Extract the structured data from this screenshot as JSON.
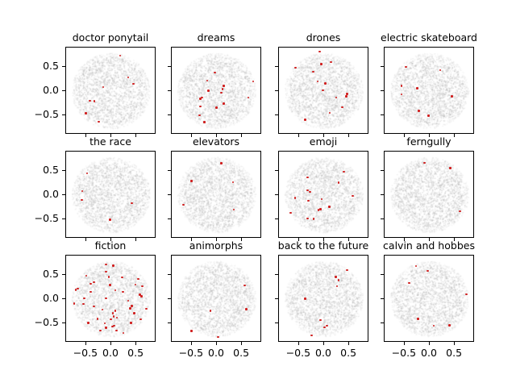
{
  "figure": {
    "background_color": "#ffffff",
    "text_color": "#000000"
  },
  "chart_data": {
    "type": "scatter",
    "grid": {
      "rows": 3,
      "cols": 4
    },
    "xlim": [
      -0.9,
      0.9
    ],
    "ylim": [
      -0.9,
      0.9
    ],
    "x_ticks": [
      -0.5,
      0.0,
      0.5
    ],
    "y_ticks": [
      0.5,
      0.0,
      -0.5
    ],
    "x_tick_labels": [
      "−0.5",
      "0.0",
      "0.5"
    ],
    "y_tick_labels": [
      "0.5",
      "0.0",
      "−0.5"
    ],
    "legend": "none",
    "grid_lines": false,
    "point_color": "#d01f1f",
    "background_cloud": {
      "description": "dense uniform disc of faint gray points behind each subplot",
      "color": "#c8c8c8",
      "radius_data_units": 0.78,
      "n_points": 2200
    },
    "subplots": [
      {
        "title": "doctor ponytail",
        "points": [
          [
            0.18,
            0.73
          ],
          [
            0.34,
            0.28
          ],
          [
            0.44,
            0.15
          ],
          [
            -0.16,
            0.08
          ],
          [
            -0.43,
            -0.2
          ],
          [
            -0.34,
            -0.21
          ],
          [
            -0.51,
            -0.46
          ],
          [
            -0.25,
            -0.63
          ]
        ]
      },
      {
        "title": "dreams",
        "points": [
          [
            -0.04,
            0.38
          ],
          [
            -0.19,
            0.22
          ],
          [
            0.72,
            0.2
          ],
          [
            0.14,
            0.11
          ],
          [
            0.11,
            0.04
          ],
          [
            -0.17,
            0.01
          ],
          [
            0.09,
            -0.03
          ],
          [
            0.63,
            -0.13
          ],
          [
            -0.3,
            -0.13
          ],
          [
            -0.33,
            -0.16
          ],
          [
            0.14,
            -0.26
          ],
          [
            -0.33,
            -0.32
          ],
          [
            -0.01,
            -0.34
          ],
          [
            -0.35,
            -0.5
          ],
          [
            -0.25,
            -0.64
          ]
        ]
      },
      {
        "title": "drones",
        "points": [
          [
            -0.09,
            0.82
          ],
          [
            0.14,
            0.6
          ],
          [
            -0.06,
            0.56
          ],
          [
            -0.57,
            0.48
          ],
          [
            -0.22,
            0.4
          ],
          [
            -0.13,
            0.2
          ],
          [
            0.02,
            0.16
          ],
          [
            -0.02,
            0.02
          ],
          [
            0.46,
            -0.06
          ],
          [
            0.44,
            -0.11
          ],
          [
            0.24,
            -0.13
          ],
          [
            0.36,
            -0.33
          ],
          [
            0.11,
            -0.45
          ],
          [
            -0.38,
            -0.59
          ]
        ]
      },
      {
        "title": "electric skateboard",
        "points": [
          [
            -0.47,
            0.5
          ],
          [
            0.21,
            0.43
          ],
          [
            -0.56,
            0.11
          ],
          [
            -0.25,
            0.06
          ],
          [
            -0.56,
            -0.07
          ],
          [
            0.44,
            -0.11
          ],
          [
            -0.22,
            -0.41
          ],
          [
            -0.02,
            -0.51
          ]
        ]
      },
      {
        "title": "the race",
        "points": [
          [
            -0.48,
            0.45
          ],
          [
            -0.58,
            0.08
          ],
          [
            -0.59,
            -0.1
          ],
          [
            0.41,
            -0.17
          ],
          [
            -0.02,
            -0.51
          ]
        ]
      },
      {
        "title": "elevators",
        "points": [
          [
            0.09,
            0.66
          ],
          [
            -0.51,
            0.29
          ],
          [
            0.32,
            0.27
          ],
          [
            -0.67,
            -0.2
          ],
          [
            0.34,
            -0.3
          ]
        ]
      },
      {
        "title": "emoji",
        "points": [
          [
            0.39,
            0.48
          ],
          [
            -0.33,
            0.37
          ],
          [
            0.29,
            0.26
          ],
          [
            -0.33,
            0.1
          ],
          [
            -0.28,
            0.07
          ],
          [
            0.57,
            -0.02
          ],
          [
            -0.58,
            -0.06
          ],
          [
            -0.05,
            -0.08
          ],
          [
            -0.31,
            -0.12
          ],
          [
            0.1,
            -0.24
          ],
          [
            -0.07,
            -0.29
          ],
          [
            -0.11,
            -0.31
          ],
          [
            -0.67,
            -0.37
          ],
          [
            -0.33,
            -0.48
          ],
          [
            -0.21,
            -0.49
          ]
        ]
      },
      {
        "title": "ferngully",
        "points": [
          [
            -0.1,
            0.67
          ],
          [
            0.41,
            0.56
          ],
          [
            0.6,
            -0.33
          ]
        ]
      },
      {
        "title": "fiction",
        "points": [
          [
            -0.1,
            0.72
          ],
          [
            0.04,
            0.69
          ],
          [
            -0.1,
            0.57
          ],
          [
            -0.5,
            0.48
          ],
          [
            -0.05,
            0.46
          ],
          [
            0.22,
            0.45
          ],
          [
            0.54,
            0.42
          ],
          [
            -0.35,
            0.35
          ],
          [
            -0.41,
            0.32
          ],
          [
            0.48,
            0.3
          ],
          [
            -0.02,
            0.29
          ],
          [
            0.62,
            0.27
          ],
          [
            -0.67,
            0.22
          ],
          [
            -0.71,
            0.19
          ],
          [
            0.08,
            0.18
          ],
          [
            0.23,
            0.15
          ],
          [
            -0.41,
            0.15
          ],
          [
            0.57,
            0.09
          ],
          [
            0.6,
            0.06
          ],
          [
            -0.54,
            0.02
          ],
          [
            -0.1,
            0.02
          ],
          [
            0.34,
            -0.03
          ],
          [
            -0.74,
            -0.09
          ],
          [
            -0.55,
            -0.1
          ],
          [
            0.41,
            -0.14
          ],
          [
            -0.35,
            -0.15
          ],
          [
            0.38,
            -0.19
          ],
          [
            0.7,
            -0.2
          ],
          [
            -0.18,
            -0.22
          ],
          [
            0.08,
            -0.24
          ],
          [
            0.03,
            -0.29
          ],
          [
            0.46,
            -0.29
          ],
          [
            0.05,
            -0.36
          ],
          [
            0.11,
            -0.38
          ],
          [
            -0.27,
            -0.41
          ],
          [
            -0.01,
            -0.42
          ],
          [
            0.59,
            -0.42
          ],
          [
            -0.46,
            -0.49
          ],
          [
            0.39,
            -0.49
          ],
          [
            -0.13,
            -0.5
          ],
          [
            0.06,
            -0.55
          ],
          [
            0.02,
            -0.57
          ],
          [
            -0.1,
            -0.59
          ],
          [
            0.1,
            -0.65
          ],
          [
            -0.22,
            -0.65
          ],
          [
            0.24,
            -0.7
          ]
        ]
      },
      {
        "title": "animorphs",
        "points": [
          [
            0.55,
            0.28
          ],
          [
            0.59,
            -0.21
          ],
          [
            -0.13,
            -0.24
          ],
          [
            -0.51,
            -0.66
          ],
          [
            0.02,
            -0.78
          ]
        ]
      },
      {
        "title": "back to the future",
        "points": [
          [
            0.46,
            0.6
          ],
          [
            0.23,
            0.46
          ],
          [
            0.29,
            0.39
          ],
          [
            0.26,
            0.27
          ],
          [
            -0.38,
            0.01
          ],
          [
            -0.07,
            -0.43
          ],
          [
            0.06,
            -0.55
          ],
          [
            0.01,
            -0.58
          ],
          [
            -0.25,
            -0.75
          ]
        ]
      },
      {
        "title": "calvin and hobbes",
        "points": [
          [
            -0.27,
            0.68
          ],
          [
            -0.04,
            0.58
          ],
          [
            -0.41,
            0.33
          ],
          [
            0.73,
            0.1
          ],
          [
            -0.23,
            -0.41
          ],
          [
            0.08,
            -0.55
          ],
          [
            0.39,
            -0.54
          ]
        ]
      }
    ]
  }
}
